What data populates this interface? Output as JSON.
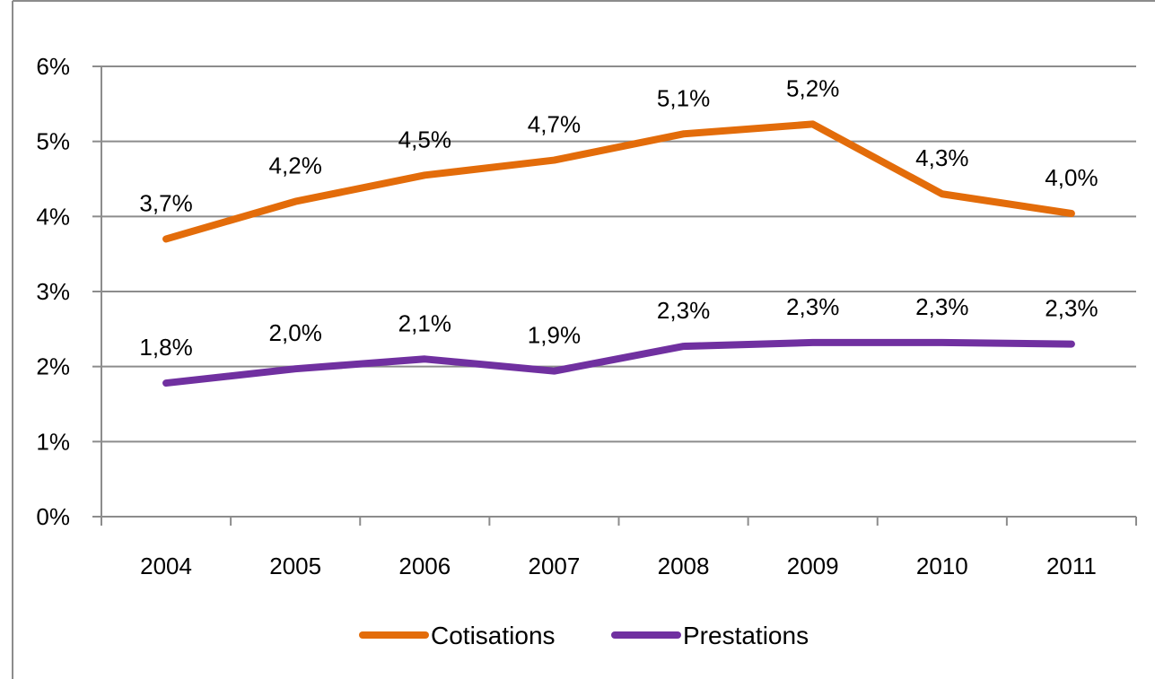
{
  "chart_data": {
    "type": "line",
    "categories": [
      "2004",
      "2005",
      "2006",
      "2007",
      "2008",
      "2009",
      "2010",
      "2011"
    ],
    "series": [
      {
        "name": "Cotisations",
        "values": [
          3.7,
          4.2,
          4.55,
          4.75,
          5.1,
          5.23,
          4.3,
          4.04
        ],
        "labels": [
          "3,7%",
          "4,2%",
          "4,5%",
          "4,7%",
          "5,1%",
          "5,2%",
          "4,3%",
          "4,0%"
        ],
        "color": "#E36C0A"
      },
      {
        "name": "Prestations",
        "values": [
          1.78,
          1.97,
          2.1,
          1.94,
          2.27,
          2.32,
          2.32,
          2.3
        ],
        "labels": [
          "1,8%",
          "2,0%",
          "2,1%",
          "1,9%",
          "2,3%",
          "2,3%",
          "2,3%",
          "2,3%"
        ],
        "color": "#7030A0"
      }
    ],
    "ylim": [
      0,
      6
    ],
    "yticks": [
      0,
      1,
      2,
      3,
      4,
      5,
      6
    ],
    "ytick_labels": [
      "0%",
      "1%",
      "2%",
      "3%",
      "4%",
      "5%",
      "6%"
    ],
    "grid": true,
    "legend_position": "bottom",
    "title": "",
    "xlabel": "",
    "ylabel": ""
  }
}
